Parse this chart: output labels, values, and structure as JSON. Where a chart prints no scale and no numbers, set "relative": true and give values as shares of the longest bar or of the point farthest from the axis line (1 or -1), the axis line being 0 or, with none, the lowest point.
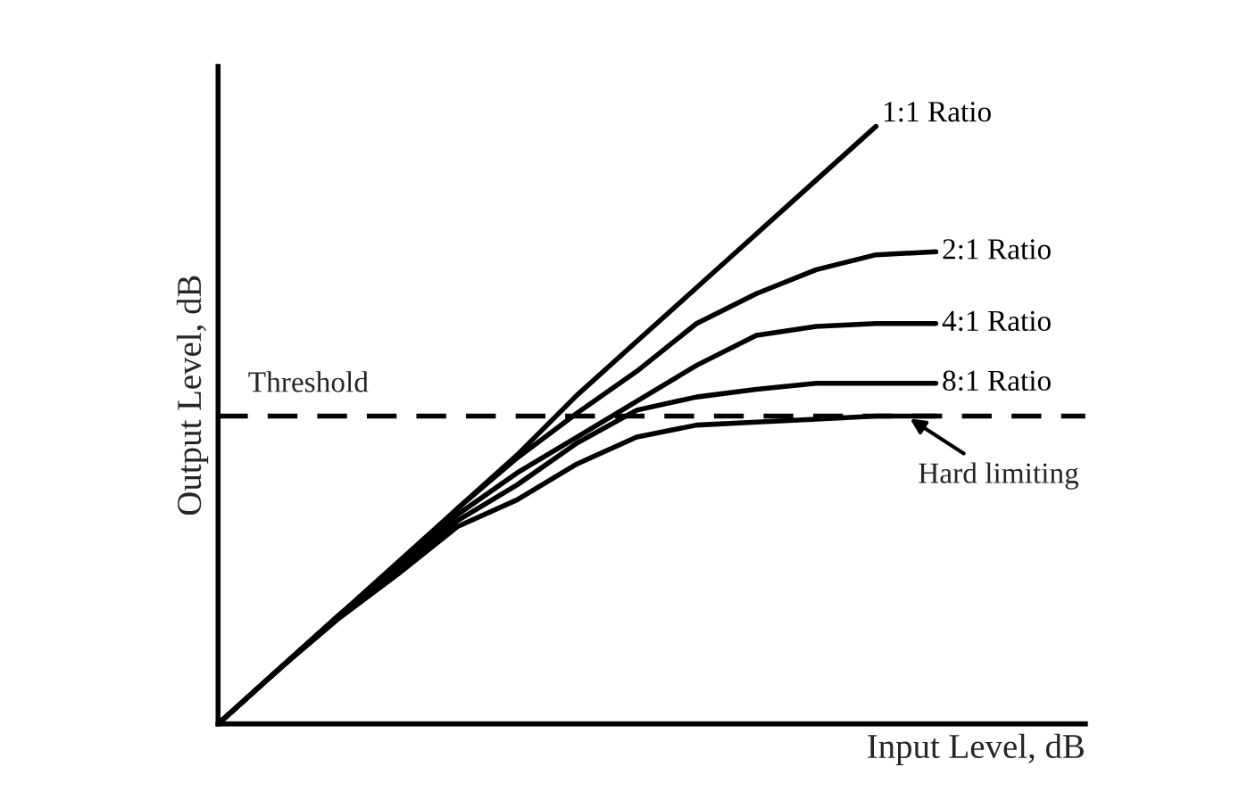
{
  "chart_data": {
    "type": "line",
    "relative": true,
    "xlabel": "Input Level, dB",
    "ylabel": "Output Level, dB",
    "categories": [
      null,
      null,
      null,
      null,
      null,
      null,
      null,
      null,
      null,
      null,
      null,
      null,
      null
    ],
    "series": [
      {
        "name": "1:1 Ratio",
        "color": "#000000",
        "values": [
          0,
          0.09,
          0.18,
          0.27,
          0.36,
          0.45,
          0.55,
          0.64,
          0.73,
          0.82,
          0.91,
          1.0,
          null
        ]
      },
      {
        "name": "2:1 Ratio",
        "color": "#000000",
        "values": [
          0,
          0.09,
          0.18,
          0.265,
          0.36,
          0.445,
          0.52,
          0.59,
          0.67,
          0.72,
          0.76,
          0.785,
          0.79
        ]
      },
      {
        "name": "4:1 Ratio",
        "color": "#000000",
        "values": [
          0,
          0.09,
          0.18,
          0.26,
          0.35,
          0.42,
          0.48,
          0.54,
          0.6,
          0.65,
          0.665,
          0.67,
          0.67
        ]
      },
      {
        "name": "8:1 Ratio",
        "color": "#000000",
        "values": [
          0,
          0.09,
          0.18,
          0.255,
          0.34,
          0.4,
          0.47,
          0.525,
          0.547,
          0.56,
          0.57,
          0.57,
          0.57
        ]
      },
      {
        "name": "Hard limiting",
        "color": "#000000",
        "values": [
          0,
          0.09,
          0.175,
          0.25,
          0.33,
          0.375,
          0.435,
          0.48,
          0.5,
          0.505,
          0.51,
          0.515,
          0.515
        ]
      }
    ],
    "ref_lines": [
      {
        "axis": "y",
        "value": 0.515,
        "label": "Threshold",
        "color": "#000000",
        "line_style": "dashed"
      }
    ],
    "line_style": "solid",
    "marker": "none"
  }
}
